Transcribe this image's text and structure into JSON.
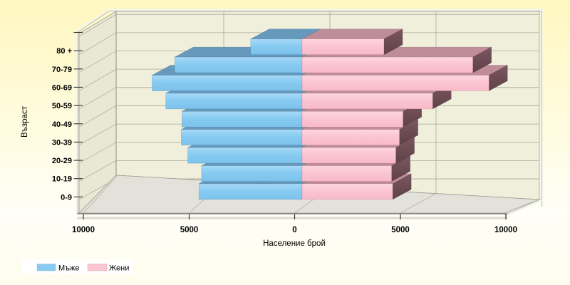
{
  "chart_data": {
    "type": "bar",
    "subtype": "3d-population-pyramid",
    "title": "",
    "categories_top_to_bottom": [
      "80 +",
      "70-79",
      "60-69",
      "50-59",
      "40-49",
      "30-39",
      "20-29",
      "10-19",
      "0-9"
    ],
    "series": [
      {
        "name": "Мъже",
        "side": "left",
        "color": "#87CBF2",
        "top_color": "#6699BC",
        "values_top_to_bottom": [
          2430,
          6020,
          7090,
          6440,
          5680,
          5710,
          5400,
          4750,
          4870
        ]
      },
      {
        "name": "Жени",
        "side": "right",
        "color": "#FBC5D2",
        "top_color": "#BE8D99",
        "cap_color": "#6B4B52",
        "values_top_to_bottom": [
          3870,
          8070,
          8830,
          6170,
          4770,
          4600,
          4430,
          4230,
          4280
        ]
      }
    ],
    "xlabel": "Население брой",
    "ylabel": "Възраст",
    "x_tick_labels": [
      "10000",
      "5000",
      "0",
      "5000",
      "10000"
    ],
    "x_tick_values": [
      10000,
      5000,
      0,
      5000,
      10000
    ],
    "axis_max_each_side": 10000,
    "grid": true,
    "legend_position": "bottom-left"
  },
  "palette": {
    "background_top": "#FFF7C0",
    "background_mid": "#FFFBDC",
    "background_bottom": "#FFFDEE",
    "back_wall": "#EFEFDC",
    "left_wall": "#E8E8D4",
    "floor": "#E2E2DB",
    "grid_line": "#A9A99E",
    "axis_line": "#6E6E66",
    "legend_background": "#FFFFFF",
    "text": "#000000"
  }
}
